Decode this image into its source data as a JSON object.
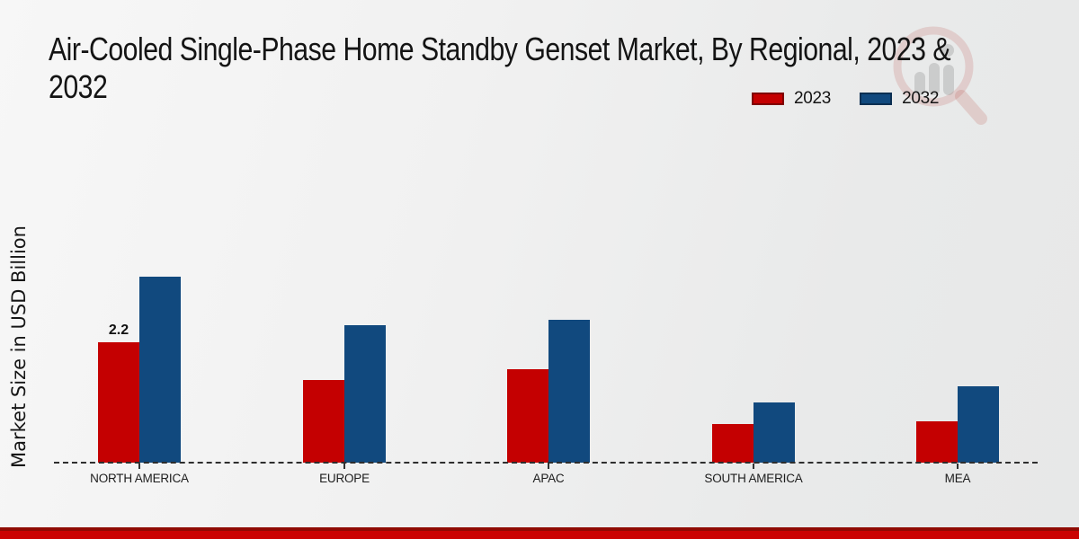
{
  "title": {
    "line1": "Air-Cooled Single-Phase Home Standby Genset Market, By Regional, 2023 &",
    "line2": "2032"
  },
  "ylabel": "Market Size in USD Billion",
  "legend": {
    "items": [
      {
        "label": "2023",
        "color": "#c40001"
      },
      {
        "label": "2032",
        "color": "#11497e"
      }
    ]
  },
  "watermark_icon": "magnifier-bar-chart-logo",
  "chart_data": {
    "type": "bar",
    "title": "Air-Cooled Single-Phase Home Standby Genset Market, By Regional, 2023 & 2032",
    "categories": [
      "NORTH AMERICA",
      "EUROPE",
      "APAC",
      "SOUTH AMERICA",
      "MEA"
    ],
    "series": [
      {
        "name": "2023",
        "color": "#c40001",
        "values": [
          2.2,
          1.5,
          1.7,
          0.7,
          0.75
        ]
      },
      {
        "name": "2032",
        "color": "#11497e",
        "values": [
          3.4,
          2.5,
          2.6,
          1.1,
          1.4
        ]
      }
    ],
    "ylabel": "Market Size in USD Billion",
    "xlabel": "",
    "ylim": [
      0,
      3.6
    ],
    "grid": false,
    "legend_position": "top-right",
    "baseline_style": "dashed",
    "data_labels": [
      {
        "category": "NORTH AMERICA",
        "series": "2023",
        "text": "2.2"
      }
    ]
  },
  "footer": {
    "accent_color": "#cb0302",
    "accent_dark_color": "#8f0b04"
  }
}
